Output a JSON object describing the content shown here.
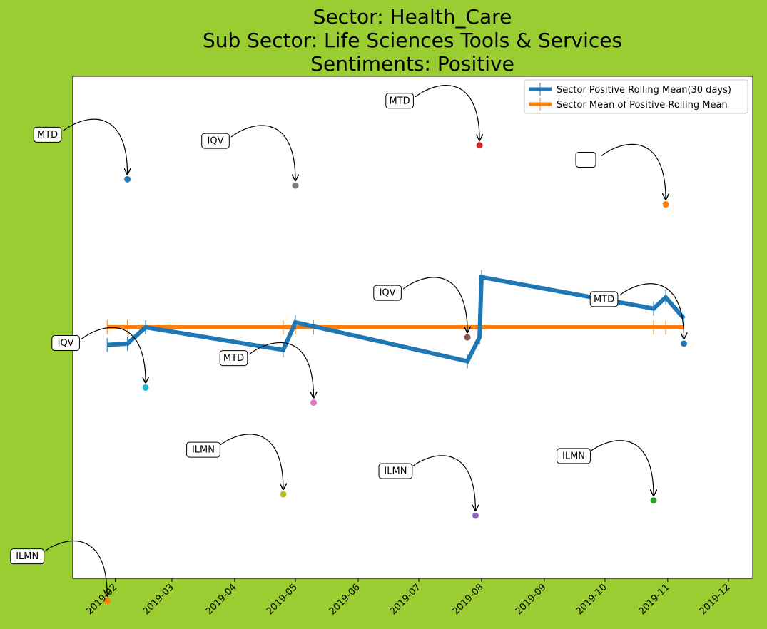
{
  "chart_data": {
    "type": "line",
    "title_lines": [
      "Sector:  Health_Care",
      "Sub Sector:  Life Sciences Tools & Services",
      "Sentiments:  Positive"
    ],
    "xlabel": "",
    "ylabel": "",
    "x_ticks": [
      "2019-02",
      "2019-03",
      "2019-04",
      "2019-05",
      "2019-06",
      "2019-07",
      "2019-08",
      "2019-09",
      "2019-10",
      "2019-11",
      "2019-12"
    ],
    "xlim": [
      "2019-01-11",
      "2019-12-13"
    ],
    "ylim": [
      -1.0,
      1.0
    ],
    "y_ticks_visible": false,
    "grid": false,
    "legend_position": "top-right",
    "series": [
      {
        "name": "Sector Positive Rolling Mean(30 days)",
        "color": "#1f77b4",
        "x": [
          "2019-01-28",
          "2019-02-07",
          "2019-02-16",
          "2019-04-25",
          "2019-05-01",
          "2019-07-25",
          "2019-07-31",
          "2019-08-01",
          "2019-10-25",
          "2019-10-31",
          "2019-11-09"
        ],
        "y": [
          -0.07,
          -0.065,
          0.0,
          -0.09,
          0.02,
          -0.135,
          -0.04,
          0.2,
          0.075,
          0.12,
          0.035
        ]
      },
      {
        "name": "Sector Mean of Positive Rolling Mean",
        "color": "#ff7f0e",
        "x": [
          "2019-01-28",
          "2019-02-07",
          "2019-02-16",
          "2019-04-25",
          "2019-05-01",
          "2019-05-10",
          "2019-07-25",
          "2019-07-31",
          "2019-08-01",
          "2019-10-25",
          "2019-10-31",
          "2019-11-09"
        ],
        "y": [
          0.0,
          0.0,
          0.0,
          0.0,
          0.0,
          0.0,
          0.0,
          0.0,
          0.0,
          0.0,
          0.0,
          0.0
        ]
      }
    ],
    "points": [
      {
        "label": "MTD",
        "date": "2019-02-07",
        "value": 0.59,
        "color": "#1f77b4"
      },
      {
        "label": "IQV",
        "date": "2019-02-16",
        "value": -0.24,
        "color": "#17becf"
      },
      {
        "label": "ILMN",
        "date": "2019-01-28",
        "value": -1.09,
        "color": "#ff7f0e"
      },
      {
        "label": "IQV",
        "date": "2019-05-01",
        "value": 0.565,
        "color": "#7f7f7f"
      },
      {
        "label": "MTD",
        "date": "2019-05-10",
        "value": -0.3,
        "color": "#e377c2"
      },
      {
        "label": "ILMN",
        "date": "2019-04-25",
        "value": -0.665,
        "color": "#bcbd22"
      },
      {
        "label": "MTD",
        "date": "2019-07-31",
        "value": 0.725,
        "color": "#d62728"
      },
      {
        "label": "IQV",
        "date": "2019-07-25",
        "value": -0.04,
        "color": "#8c564b"
      },
      {
        "label": "ILMN",
        "date": "2019-07-29",
        "value": -0.75,
        "color": "#9467bd"
      },
      {
        "label": "",
        "date": "2019-10-31",
        "value": 0.49,
        "color": "#ff7f0e"
      },
      {
        "label": "MTD",
        "date": "2019-11-09",
        "value": -0.065,
        "color": "#1f77b4"
      },
      {
        "label": "ILMN",
        "date": "2019-10-25",
        "value": -0.69,
        "color": "#2ca02c"
      }
    ]
  }
}
